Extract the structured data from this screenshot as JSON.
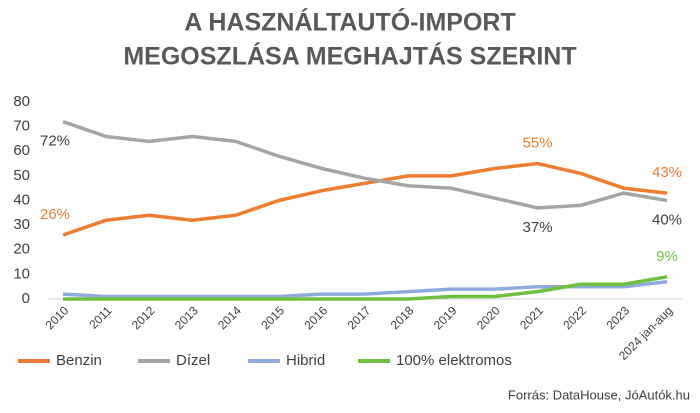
{
  "chart_data": {
    "type": "line",
    "title": [
      "A HASZNÁLTAUTÓ-IMPORT",
      "MEGOSZLÁSA MEGHAJTÁS SZERINT"
    ],
    "source": "Forrás: DataHouse, JóAutók.hu",
    "categories": [
      "2010",
      "2011",
      "2012",
      "2013",
      "2014",
      "2015",
      "2016",
      "2017",
      "2018",
      "2019",
      "2020",
      "2021",
      "2022",
      "2023",
      "2024 jan-aug"
    ],
    "series": [
      {
        "name": "Benzin",
        "color": "#ed7d31",
        "label_color": "#ed7d31",
        "label_position": "above",
        "values": [
          26,
          32,
          34,
          32,
          34,
          40,
          44,
          47,
          50,
          50,
          53,
          55,
          51,
          45,
          43
        ],
        "value_labels": [
          "26%",
          null,
          null,
          null,
          null,
          null,
          null,
          null,
          null,
          null,
          null,
          "55%",
          null,
          null,
          "43%"
        ]
      },
      {
        "name": "Dízel",
        "color": "#a5a5a5",
        "label_color": "#404040",
        "label_position": "below",
        "values": [
          72,
          66,
          64,
          66,
          64,
          58,
          53,
          49,
          46,
          45,
          41,
          37,
          38,
          43,
          40
        ],
        "value_labels": [
          "72%",
          null,
          null,
          null,
          null,
          null,
          null,
          null,
          null,
          null,
          null,
          "37%",
          null,
          null,
          "40%"
        ]
      },
      {
        "name": "Hibrid",
        "color": "#8faadc",
        "label_color": "#8faadc",
        "label_position": "above",
        "values": [
          2,
          1,
          1,
          1,
          1,
          1,
          2,
          2,
          3,
          4,
          4,
          5,
          5,
          5,
          7
        ]
      },
      {
        "name": "100% elektromos",
        "color": "#70c040",
        "label_color": "#70c040",
        "label_position": "above",
        "values": [
          0,
          0,
          0,
          0,
          0,
          0,
          0,
          0,
          0,
          1,
          1,
          3,
          6,
          6,
          9
        ],
        "value_labels": [
          null,
          null,
          null,
          null,
          null,
          null,
          null,
          null,
          null,
          null,
          null,
          null,
          null,
          null,
          "9%"
        ]
      }
    ],
    "ylim": [
      0,
      80
    ],
    "yticks": [
      0,
      10,
      20,
      30,
      40,
      50,
      60,
      70,
      80
    ],
    "grid": false
  }
}
